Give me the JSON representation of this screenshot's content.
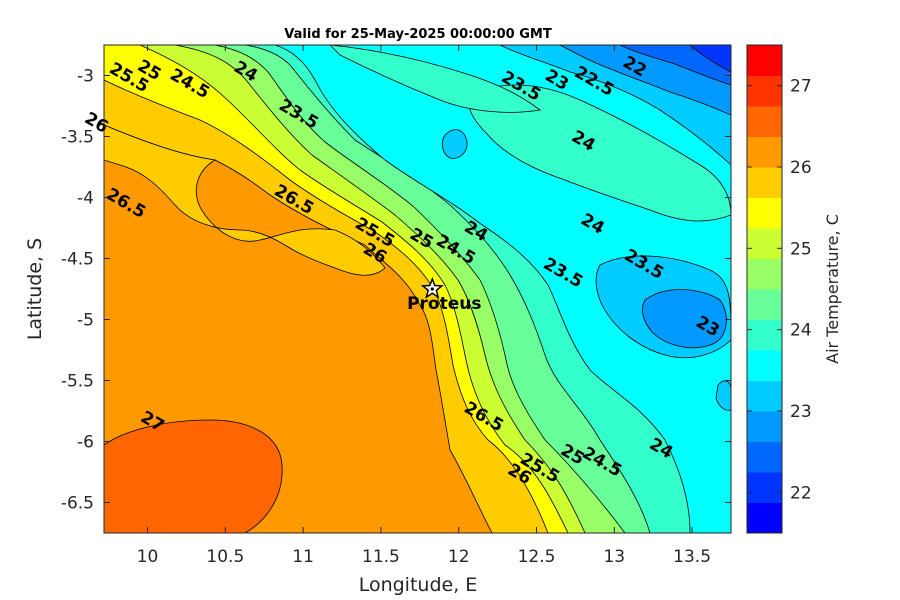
{
  "chart_data": {
    "type": "heatmap",
    "title": "Valid for 25-May-2025 00:00:00 GMT",
    "xlabel": "Longitude, E",
    "ylabel": "Latitude, S",
    "xlim": [
      9.72,
      13.75
    ],
    "ylim": [
      -6.75,
      -2.75
    ],
    "xticks": [
      "10",
      "10.5",
      "11",
      "11.5",
      "12",
      "12.5",
      "13",
      "13.5"
    ],
    "yticks": [
      "-3",
      "-3.5",
      "-4",
      "-4.5",
      "-5",
      "-5.5",
      "-6",
      "-6.5"
    ],
    "colorbar": {
      "label": "Air Temperature, C",
      "range": [
        21.5,
        27.5
      ],
      "step": 0.25,
      "tick_labels": [
        "22",
        "23",
        "24",
        "25",
        "26",
        "27"
      ],
      "colors": [
        "#0000ff",
        "#0034ff",
        "#0067ff",
        "#0099ff",
        "#00ccff",
        "#00ffff",
        "#33ffcc",
        "#66ff99",
        "#99ff66",
        "#ccff33",
        "#ffff00",
        "#ffcc00",
        "#ff9900",
        "#ff6600",
        "#ff3300",
        "#ff0000"
      ]
    },
    "contour_labels": [
      {
        "text": "22",
        "lon": 13.13,
        "lat": -2.93
      },
      {
        "text": "22.5",
        "lon": 12.87,
        "lat": -3.05
      },
      {
        "text": "23",
        "lon": 12.63,
        "lat": -3.04
      },
      {
        "text": "23.5",
        "lon": 12.4,
        "lat": -3.09
      },
      {
        "text": "24",
        "lon": 12.8,
        "lat": -3.54
      },
      {
        "text": "24",
        "lon": 12.86,
        "lat": -4.22
      },
      {
        "text": "23.5",
        "lon": 13.19,
        "lat": -4.55
      },
      {
        "text": "23.5",
        "lon": 12.67,
        "lat": -4.62
      },
      {
        "text": "23",
        "lon": 13.6,
        "lat": -5.06
      },
      {
        "text": "25",
        "lon": 10.01,
        "lat": -2.96
      },
      {
        "text": "25.5",
        "lon": 9.88,
        "lat": -3.02
      },
      {
        "text": "24.5",
        "lon": 10.27,
        "lat": -3.07
      },
      {
        "text": "24",
        "lon": 10.63,
        "lat": -2.97
      },
      {
        "text": "23.5",
        "lon": 10.97,
        "lat": -3.32
      },
      {
        "text": "26",
        "lon": 9.67,
        "lat": -3.39
      },
      {
        "text": "26.5",
        "lon": 9.86,
        "lat": -4.05
      },
      {
        "text": "26.5",
        "lon": 10.94,
        "lat": -4.02
      },
      {
        "text": "25.5",
        "lon": 11.46,
        "lat": -4.29
      },
      {
        "text": "26",
        "lon": 11.46,
        "lat": -4.46
      },
      {
        "text": "25",
        "lon": 11.76,
        "lat": -4.34
      },
      {
        "text": "24.5",
        "lon": 11.98,
        "lat": -4.43
      },
      {
        "text": "24",
        "lon": 12.11,
        "lat": -4.28
      },
      {
        "text": "26.5",
        "lon": 12.16,
        "lat": -5.8
      },
      {
        "text": "27",
        "lon": 10.03,
        "lat": -5.84
      },
      {
        "text": "26",
        "lon": 12.39,
        "lat": -6.27
      },
      {
        "text": "25.5",
        "lon": 12.52,
        "lat": -6.22
      },
      {
        "text": "25",
        "lon": 12.73,
        "lat": -6.11
      },
      {
        "text": "24.5",
        "lon": 12.92,
        "lat": -6.17
      },
      {
        "text": "24",
        "lon": 13.3,
        "lat": -6.06
      }
    ],
    "station": {
      "name": "Proteus",
      "lon": 11.83,
      "lat": -4.75
    }
  }
}
